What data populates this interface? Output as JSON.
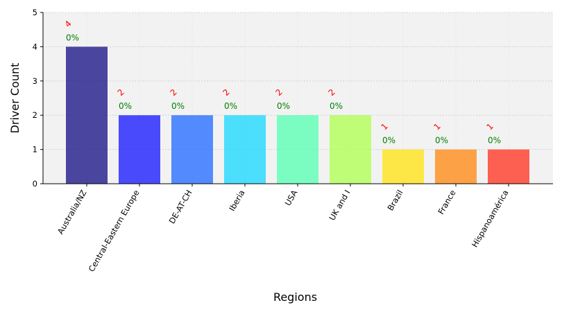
{
  "chart_data": {
    "type": "bar",
    "categories": [
      "Australia/NZ",
      "Central-Eastern Europe",
      "DE-AT-CH",
      "Iberia",
      "USA",
      "UK and I",
      "Brazil",
      "France",
      "Hispanoamérica"
    ],
    "values": [
      4,
      2,
      2,
      2,
      2,
      2,
      1,
      1,
      1
    ],
    "count_labels": [
      "4",
      "2",
      "2",
      "2",
      "2",
      "2",
      "1",
      "1",
      "1"
    ],
    "percent_labels": [
      "0%",
      "0%",
      "0%",
      "0%",
      "0%",
      "0%",
      "0%",
      "0%",
      "0%"
    ],
    "colors": [
      "#1f1a8a",
      "#1f1fff",
      "#2a6fff",
      "#22d8ff",
      "#5cffb4",
      "#b0ff55",
      "#ffe31a",
      "#ff8c1a",
      "#ff3a28"
    ],
    "xlabel": "Regions",
    "ylabel": "Driver Count",
    "ylim": [
      0,
      5
    ],
    "yticks": [
      0,
      1,
      2,
      3,
      4,
      5
    ],
    "grid": true
  }
}
